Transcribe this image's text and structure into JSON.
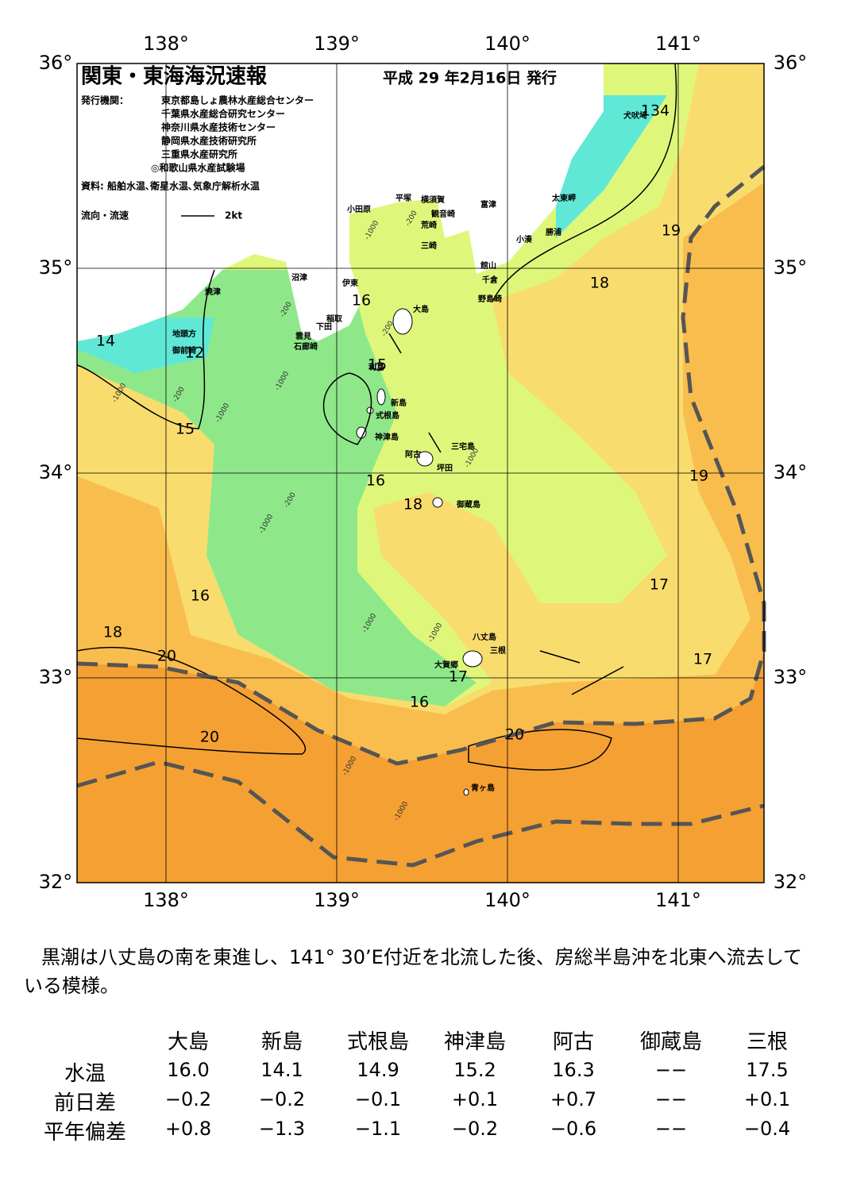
{
  "header": {
    "title": "関東・東海海況速報",
    "date": "平成 29 年2月16日 発行",
    "issuer_label": "発行機関：",
    "issuers": [
      "東京都島しょ農林水産総合センター",
      "千葉県水産総合研究センター",
      "神奈川県水産技術センター",
      "静岡県水産技術研究所",
      "三重県水産研究所",
      "◎和歌山県水産試験場"
    ],
    "source": "資料: 船舶水温､衛星水温､気象庁解析水温",
    "current_label": "流向・流速",
    "current_scale": "2kt"
  },
  "map": {
    "lon_ticks": [
      {
        "value": 138,
        "label": "138°"
      },
      {
        "value": 139,
        "label": "139°"
      },
      {
        "value": 140,
        "label": "140°"
      },
      {
        "value": 141,
        "label": "141°"
      }
    ],
    "lat_ticks": [
      {
        "value": 32,
        "label": "32°"
      },
      {
        "value": 33,
        "label": "33°"
      },
      {
        "value": 34,
        "label": "34°"
      },
      {
        "value": 35,
        "label": "35°"
      },
      {
        "value": 36,
        "label": "36°"
      }
    ],
    "places": [
      "犬吠埼",
      "富津",
      "横須賀",
      "平塚",
      "小田原",
      "観音崎",
      "荒崎",
      "三崎",
      "太東岬",
      "勝浦",
      "小湊",
      "館山",
      "千倉",
      "野島崎",
      "沼津",
      "伊東",
      "焼津",
      "稲取",
      "下田",
      "雲見",
      "石廊崎",
      "地頭方",
      "御前崎",
      "大島",
      "利島",
      "新島",
      "式根島",
      "神津島",
      "三宅島",
      "阿古",
      "坪田",
      "御蔵島",
      "八丈島",
      "三根",
      "大賀郷",
      "青ヶ島"
    ],
    "contour_labels": [
      "134",
      "19",
      "18",
      "16",
      "14",
      "12",
      "15",
      "15",
      "19",
      "16",
      "18",
      "17",
      "16",
      "18",
      "20",
      "17",
      "17",
      "16",
      "20",
      "20"
    ],
    "depth_labels": [
      "-200",
      "-1000",
      "-200",
      "-1000",
      "-200",
      "-1000",
      "-1000",
      "-200",
      "-1000",
      "-1000",
      "-1000",
      "-200",
      "-1000",
      "-1000",
      "-1000"
    ]
  },
  "summary": "黒潮は八丈島の南を東進し、141° 30’E付近を北流した後、房総半島沖を北東へ流去している模様。",
  "table": {
    "columns": [
      "大島",
      "新島",
      "式根島",
      "神津島",
      "阿古",
      "御蔵島",
      "三根"
    ],
    "rows": [
      {
        "label": "水温",
        "values": [
          "16.0",
          "14.1",
          "14.9",
          "15.2",
          "16.3",
          "−−",
          "17.5"
        ]
      },
      {
        "label": "前日差",
        "values": [
          "−0.2",
          "−0.2",
          "−0.1",
          "+0.1",
          "+0.7",
          "−−",
          "+0.1"
        ]
      },
      {
        "label": "平年偏差",
        "values": [
          "+0.8",
          "−1.3",
          "−1.1",
          "−0.2",
          "−0.6",
          "−−",
          "−0.4"
        ]
      }
    ]
  }
}
